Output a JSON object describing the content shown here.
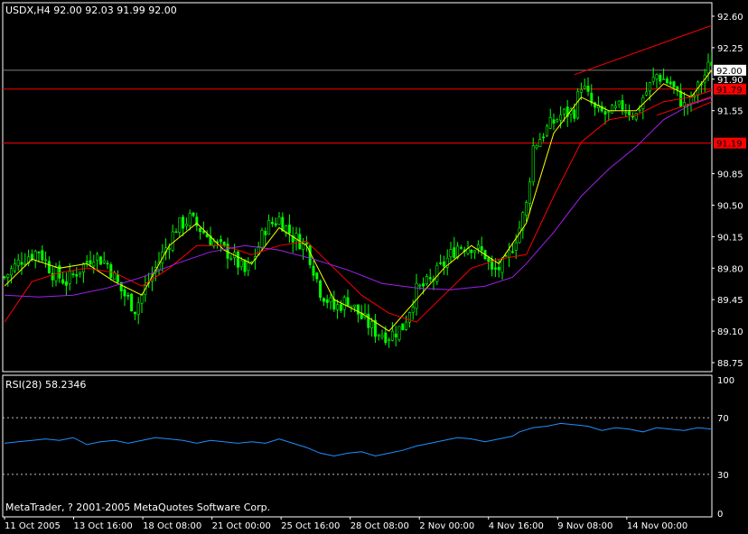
{
  "header": {
    "symbol_line": "USDX,H4  92.00 92.03 91.99 92.00",
    "rsi_label": "RSI(28) 58.2346",
    "copyright": "MetaTrader, ? 2001-2005 MetaQuotes Software Corp."
  },
  "colors": {
    "background": "#000000",
    "grid_frame": "#ffffff",
    "candle": "#00ff00",
    "fast_ma": "#ffff00",
    "mid_ma": "#ff0000",
    "slow_ma": "#a020f0",
    "level_line": "#ff0000",
    "price_line": "#808080",
    "channel": "#ff0000",
    "rsi": "#1e90ff",
    "rsi_levels": "#c0c0c0",
    "text": "#ffffff"
  },
  "chart_data": [
    {
      "type": "candlestick",
      "title": "USDX,H4  92.00 92.03 91.99 92.00",
      "ylim": [
        88.65,
        92.75
      ],
      "y_ticks": [
        "92.60",
        "92.25",
        "91.90",
        "91.55",
        "90.85",
        "90.50",
        "90.15",
        "89.80",
        "89.45",
        "89.10",
        "88.75"
      ],
      "x_ticks": [
        "11 Oct 2005",
        "13 Oct 16:00",
        "18 Oct 08:00",
        "21 Oct 00:00",
        "25 Oct 16:00",
        "28 Oct 08:00",
        "2 Nov 00:00",
        "4 Nov 16:00",
        "9 Nov 08:00",
        "14 Nov 00:00"
      ],
      "price_markers": [
        {
          "label": "92.00",
          "value": 92.0,
          "style": "current"
        },
        {
          "label": "91.79",
          "value": 91.79,
          "style": "level"
        },
        {
          "label": "91.19",
          "value": 91.19,
          "style": "level"
        }
      ],
      "close_path": [
        [
          0,
          89.7
        ],
        [
          5,
          89.9
        ],
        [
          10,
          90.0
        ],
        [
          14,
          89.75
        ],
        [
          18,
          89.65
        ],
        [
          22,
          89.8
        ],
        [
          26,
          89.95
        ],
        [
          30,
          89.85
        ],
        [
          34,
          89.55
        ],
        [
          38,
          89.35
        ],
        [
          42,
          89.65
        ],
        [
          46,
          89.95
        ],
        [
          50,
          90.25
        ],
        [
          54,
          90.35
        ],
        [
          58,
          90.2
        ],
        [
          62,
          90.05
        ],
        [
          66,
          89.95
        ],
        [
          70,
          89.75
        ],
        [
          72,
          89.85
        ],
        [
          76,
          90.25
        ],
        [
          80,
          90.35
        ],
        [
          84,
          90.15
        ],
        [
          88,
          90.05
        ],
        [
          92,
          89.55
        ],
        [
          96,
          89.35
        ],
        [
          100,
          89.45
        ],
        [
          104,
          89.25
        ],
        [
          108,
          89.1
        ],
        [
          112,
          89.05
        ],
        [
          116,
          89.15
        ],
        [
          120,
          89.55
        ],
        [
          124,
          89.65
        ],
        [
          128,
          89.85
        ],
        [
          132,
          90.05
        ],
        [
          136,
          90.05
        ],
        [
          140,
          89.95
        ],
        [
          142,
          89.75
        ],
        [
          146,
          89.85
        ],
        [
          150,
          90.25
        ],
        [
          152,
          90.5
        ],
        [
          154,
          91.15
        ],
        [
          158,
          91.35
        ],
        [
          162,
          91.5
        ],
        [
          166,
          91.55
        ],
        [
          168,
          91.85
        ],
        [
          172,
          91.55
        ],
        [
          176,
          91.5
        ],
        [
          180,
          91.6
        ],
        [
          184,
          91.5
        ],
        [
          186,
          91.7
        ],
        [
          190,
          91.95
        ],
        [
          194,
          91.85
        ],
        [
          198,
          91.6
        ],
        [
          200,
          91.65
        ],
        [
          204,
          91.95
        ],
        [
          208,
          92.25
        ],
        [
          212,
          92.15
        ],
        [
          215,
          92.0
        ]
      ],
      "series": [
        {
          "values": [
            [
              0,
              89.6
            ],
            [
              8,
              89.9
            ],
            [
              16,
              89.8
            ],
            [
              24,
              89.85
            ],
            [
              32,
              89.65
            ],
            [
              40,
              89.5
            ],
            [
              48,
              90.05
            ],
            [
              56,
              90.3
            ],
            [
              64,
              90.0
            ],
            [
              72,
              89.85
            ],
            [
              80,
              90.25
            ],
            [
              88,
              90.05
            ],
            [
              96,
              89.45
            ],
            [
              104,
              89.3
            ],
            [
              112,
              89.1
            ],
            [
              120,
              89.45
            ],
            [
              128,
              89.8
            ],
            [
              136,
              90.05
            ],
            [
              144,
              89.85
            ],
            [
              152,
              90.3
            ],
            [
              160,
              91.3
            ],
            [
              168,
              91.7
            ],
            [
              176,
              91.55
            ],
            [
              184,
              91.55
            ],
            [
              192,
              91.85
            ],
            [
              200,
              91.7
            ],
            [
              208,
              92.1
            ],
            [
              215,
              92.05
            ]
          ]
        },
        {
          "values": [
            [
              0,
              89.2
            ],
            [
              8,
              89.65
            ],
            [
              16,
              89.75
            ],
            [
              24,
              89.8
            ],
            [
              32,
              89.75
            ],
            [
              40,
              89.6
            ],
            [
              48,
              89.8
            ],
            [
              56,
              90.05
            ],
            [
              64,
              90.05
            ],
            [
              72,
              89.95
            ],
            [
              80,
              90.05
            ],
            [
              88,
              90.1
            ],
            [
              96,
              89.8
            ],
            [
              104,
              89.5
            ],
            [
              112,
              89.3
            ],
            [
              120,
              89.2
            ],
            [
              128,
              89.5
            ],
            [
              136,
              89.8
            ],
            [
              144,
              89.9
            ],
            [
              152,
              89.95
            ],
            [
              160,
              90.6
            ],
            [
              168,
              91.2
            ],
            [
              176,
              91.45
            ],
            [
              184,
              91.5
            ],
            [
              192,
              91.65
            ],
            [
              200,
              91.7
            ],
            [
              208,
              91.8
            ],
            [
              215,
              91.82
            ]
          ]
        },
        {
          "values": [
            [
              0,
              89.5
            ],
            [
              10,
              89.48
            ],
            [
              20,
              89.5
            ],
            [
              30,
              89.58
            ],
            [
              40,
              89.7
            ],
            [
              50,
              89.85
            ],
            [
              60,
              89.98
            ],
            [
              70,
              90.05
            ],
            [
              80,
              90.0
            ],
            [
              90,
              89.9
            ],
            [
              100,
              89.78
            ],
            [
              110,
              89.63
            ],
            [
              120,
              89.58
            ],
            [
              130,
              89.56
            ],
            [
              140,
              89.6
            ],
            [
              148,
              89.7
            ],
            [
              152,
              89.85
            ],
            [
              160,
              90.2
            ],
            [
              168,
              90.6
            ],
            [
              176,
              90.9
            ],
            [
              184,
              91.15
            ],
            [
              192,
              91.45
            ],
            [
              200,
              91.62
            ],
            [
              208,
              91.72
            ],
            [
              215,
              91.78
            ]
          ]
        }
      ],
      "overlay_lines": [
        {
          "from": [
            166,
            91.95
          ],
          "to": [
            250,
            93.1
          ]
        },
        {
          "from": [
            190,
            91.5
          ],
          "to": [
            283,
            92.7
          ]
        },
        {
          "from": [
            200,
            91.55
          ],
          "to": [
            215,
            91.8
          ]
        }
      ]
    },
    {
      "type": "line",
      "title": "RSI(28) 58.2346",
      "ylim": [
        0,
        100
      ],
      "y_ticks": [
        "100",
        "70",
        "30",
        "0"
      ],
      "levels": [
        70,
        30
      ],
      "values": [
        [
          0,
          52
        ],
        [
          4,
          53
        ],
        [
          8,
          54
        ],
        [
          12,
          55
        ],
        [
          16,
          54
        ],
        [
          20,
          56
        ],
        [
          24,
          51
        ],
        [
          28,
          53
        ],
        [
          32,
          54
        ],
        [
          36,
          52
        ],
        [
          40,
          54
        ],
        [
          44,
          56
        ],
        [
          48,
          55
        ],
        [
          52,
          54
        ],
        [
          56,
          52
        ],
        [
          60,
          54
        ],
        [
          64,
          53
        ],
        [
          68,
          52
        ],
        [
          72,
          53
        ],
        [
          76,
          52
        ],
        [
          80,
          55
        ],
        [
          84,
          52
        ],
        [
          88,
          49
        ],
        [
          92,
          45
        ],
        [
          96,
          43
        ],
        [
          100,
          45
        ],
        [
          104,
          46
        ],
        [
          108,
          43
        ],
        [
          112,
          45
        ],
        [
          116,
          47
        ],
        [
          120,
          50
        ],
        [
          124,
          52
        ],
        [
          128,
          54
        ],
        [
          132,
          56
        ],
        [
          136,
          55
        ],
        [
          140,
          53
        ],
        [
          144,
          55
        ],
        [
          148,
          57
        ],
        [
          150,
          60
        ],
        [
          154,
          63
        ],
        [
          158,
          64
        ],
        [
          162,
          66
        ],
        [
          166,
          65
        ],
        [
          170,
          64
        ],
        [
          174,
          61
        ],
        [
          178,
          63
        ],
        [
          182,
          62
        ],
        [
          186,
          60
        ],
        [
          190,
          63
        ],
        [
          194,
          62
        ],
        [
          198,
          61
        ],
        [
          202,
          63
        ],
        [
          206,
          62
        ],
        [
          210,
          61
        ],
        [
          215,
          58
        ]
      ]
    }
  ]
}
